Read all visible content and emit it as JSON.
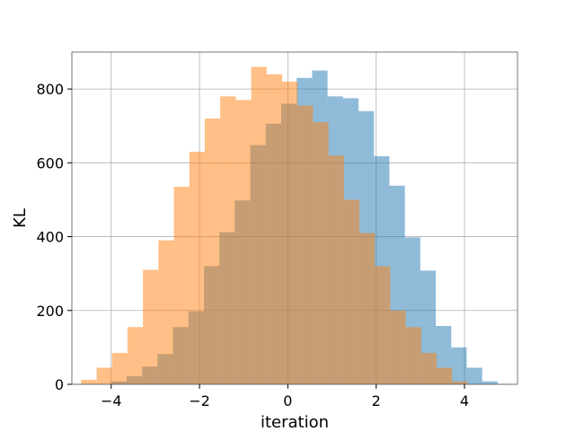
{
  "chart_data": {
    "type": "bar",
    "title": "",
    "xlabel": "iteration",
    "ylabel": "KL",
    "xlim": [
      -4.89,
      5.2
    ],
    "ylim": [
      0,
      900
    ],
    "x_ticks": [
      -4,
      -2,
      0,
      2,
      4
    ],
    "x_tick_labels": [
      "−4",
      "−2",
      "0",
      "2",
      "4"
    ],
    "y_ticks": [
      0,
      200,
      400,
      600,
      800
    ],
    "y_tick_labels": [
      "0",
      "200",
      "400",
      "600",
      "800"
    ],
    "grid": true,
    "legend": "none",
    "overlay": "alpha-blended histograms",
    "series": [
      {
        "color": "#1f77b4",
        "opacity": 0.5,
        "bin_edges": [
          -4.0,
          -3.65,
          -3.3,
          -2.95,
          -2.6,
          -2.25,
          -1.9,
          -1.55,
          -1.2,
          -0.85,
          -0.5,
          -0.15,
          0.2,
          0.55,
          0.9,
          1.25,
          1.6,
          1.95,
          2.3,
          2.65,
          3.0,
          3.35,
          3.7,
          4.05,
          4.4,
          4.75
        ],
        "counts": [
          8,
          22,
          48,
          82,
          155,
          198,
          320,
          412,
          498,
          648,
          706,
          760,
          830,
          850,
          780,
          775,
          740,
          618,
          538,
          398,
          308,
          158,
          100,
          45,
          8
        ]
      },
      {
        "color": "#ff7f0e",
        "opacity": 0.5,
        "bin_edges": [
          -4.68,
          -4.33,
          -3.98,
          -3.63,
          -3.28,
          -2.93,
          -2.58,
          -2.23,
          -1.88,
          -1.53,
          -1.18,
          -0.83,
          -0.48,
          -0.13,
          0.22,
          0.57,
          0.92,
          1.27,
          1.62,
          1.97,
          2.32,
          2.67,
          3.02,
          3.37,
          3.72,
          4.07
        ],
        "counts": [
          12,
          45,
          85,
          155,
          310,
          390,
          535,
          630,
          720,
          780,
          770,
          860,
          840,
          820,
          755,
          710,
          620,
          500,
          410,
          320,
          200,
          155,
          85,
          45,
          8
        ]
      }
    ]
  }
}
